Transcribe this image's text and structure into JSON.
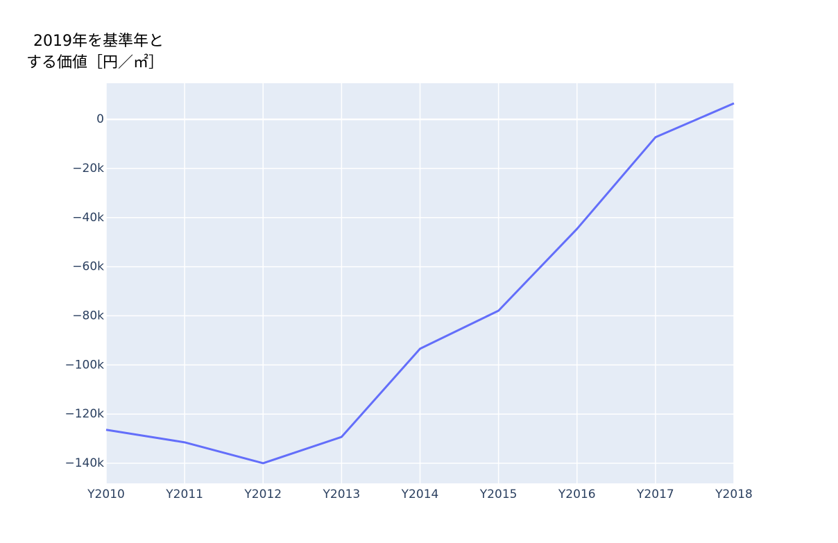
{
  "chart_data": {
    "type": "line",
    "ylabel_lines": [
      "2019年を基準年と",
      "する価値［円／㎡］"
    ],
    "categories": [
      "Y2010",
      "Y2011",
      "Y2012",
      "Y2013",
      "Y2014",
      "Y2015",
      "Y2016",
      "Y2017",
      "Y2018"
    ],
    "series": [
      {
        "name": "value",
        "color": "#636efa",
        "values": [
          -126400,
          -131500,
          -140000,
          -129300,
          -93400,
          -77900,
          -44600,
          -7300,
          6500
        ]
      }
    ],
    "ylim": [
      -148200,
      14700
    ],
    "yticks": [
      {
        "value": -140000,
        "label": "−140k"
      },
      {
        "value": -120000,
        "label": "−120k"
      },
      {
        "value": -100000,
        "label": "−100k"
      },
      {
        "value": -80000,
        "label": "−80k"
      },
      {
        "value": -60000,
        "label": "−60k"
      },
      {
        "value": -40000,
        "label": "−40k"
      },
      {
        "value": -20000,
        "label": "−20k"
      },
      0
    ],
    "grid": true
  }
}
